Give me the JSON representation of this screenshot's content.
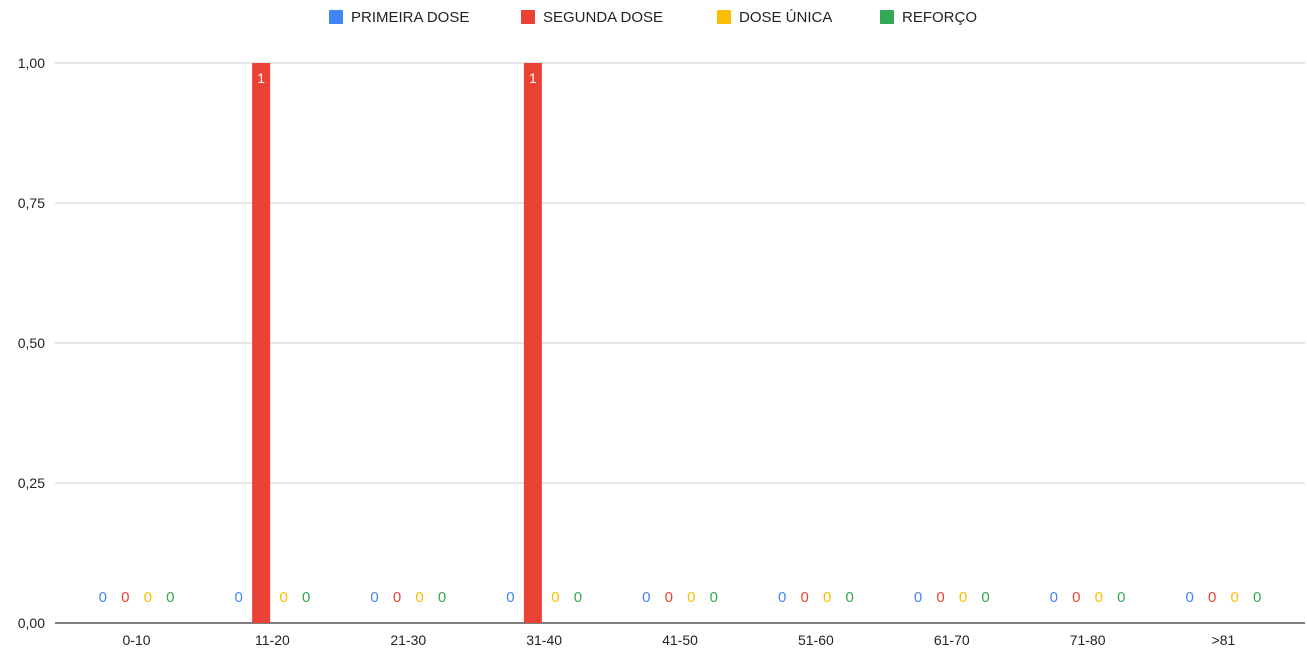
{
  "chart_data": {
    "type": "bar",
    "categories": [
      "0-10",
      "11-20",
      "21-30",
      "31-40",
      "41-50",
      "51-60",
      "61-70",
      "71-80",
      ">81"
    ],
    "series": [
      {
        "name": "PRIMEIRA DOSE",
        "color": "#4285F4",
        "values": [
          0,
          0,
          0,
          0,
          0,
          0,
          0,
          0,
          0
        ]
      },
      {
        "name": "SEGUNDA DOSE",
        "color": "#EA4335",
        "values": [
          0,
          1,
          0,
          1,
          0,
          0,
          0,
          0,
          0
        ]
      },
      {
        "name": "DOSE ÚNICA",
        "color": "#FBBC04",
        "values": [
          0,
          0,
          0,
          0,
          0,
          0,
          0,
          0,
          0
        ]
      },
      {
        "name": "REFORÇO",
        "color": "#34A853",
        "values": [
          0,
          0,
          0,
          0,
          0,
          0,
          0,
          0,
          0
        ]
      }
    ],
    "yticks": [
      "0,00",
      "0,25",
      "0,50",
      "0,75",
      "1,00"
    ],
    "ylim": [
      0,
      1
    ],
    "grid": true,
    "legend_position": "top-center",
    "title": "",
    "xlabel": "",
    "ylabel": ""
  }
}
